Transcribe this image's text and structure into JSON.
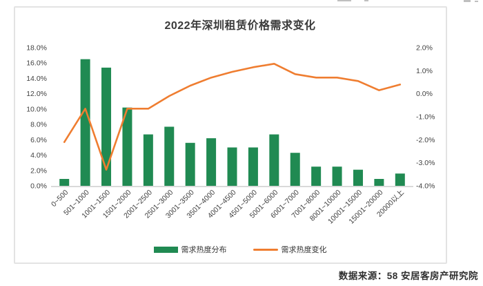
{
  "page": {
    "source_note": "数据来源：58 安居客房产研究院"
  },
  "chart_data": {
    "type": "bar",
    "subtype": "dual-axis bar + line combo",
    "title": "2022年深圳租赁价格需求变化",
    "categories": [
      "0~500",
      "501~1000",
      "1001~1500",
      "1501~2000",
      "2001~2500",
      "2501~3000",
      "3001~3500",
      "3501~4000",
      "4001~4500",
      "4501~5000",
      "5001~6000",
      "6001~7000",
      "7001~8000",
      "8001~10000",
      "10001~15000",
      "15001~20000",
      "20000以上"
    ],
    "series": [
      {
        "name": "需求热度分布",
        "type": "bar",
        "axis": "left",
        "color": "#208a52",
        "values": [
          0.9,
          16.5,
          15.4,
          10.2,
          6.7,
          7.7,
          5.6,
          6.2,
          5.0,
          5.0,
          6.7,
          4.3,
          2.5,
          2.5,
          2.1,
          0.9,
          1.6
        ]
      },
      {
        "name": "需求热度变化",
        "type": "line",
        "axis": "right",
        "color": "#ef7d30",
        "values": [
          -2.1,
          -0.65,
          -3.3,
          -0.65,
          -0.65,
          -0.1,
          0.35,
          0.7,
          0.95,
          1.15,
          1.3,
          0.85,
          0.7,
          0.7,
          0.55,
          0.15,
          0.4
        ]
      }
    ],
    "left_axis": {
      "min": 0,
      "max": 18,
      "step": 2,
      "tick_labels": [
        "18.0%",
        "16.0%",
        "14.0%",
        "12.0%",
        "10.0%",
        "8.0%",
        "6.0%",
        "4.0%",
        "2.0%",
        "0.0%"
      ]
    },
    "right_axis": {
      "min": -4,
      "max": 2,
      "step": 1,
      "tick_labels": [
        "2.0%",
        "1.0%",
        "0.0%",
        "-1.0%",
        "-2.0%",
        "-3.0%",
        "-4.0%"
      ]
    },
    "legend_position": "bottom",
    "grid": false,
    "axis_text_color": "#404040",
    "baseline_color": "#d9d9d9"
  }
}
